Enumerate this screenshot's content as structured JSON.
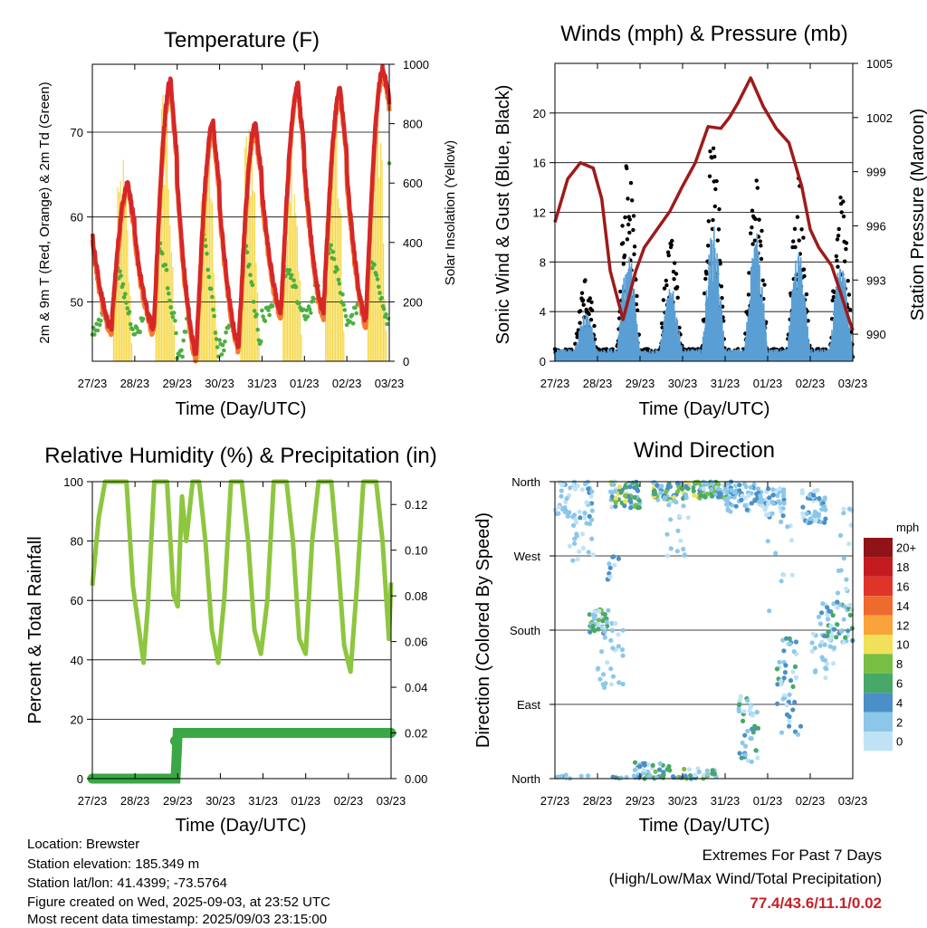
{
  "colors": {
    "temp2m": "#d62728",
    "temp9m": "#f47c30",
    "dewpoint": "#4caf3f",
    "solar": "#f5d84a",
    "wind": "#5a9fd4",
    "gust": "#000000",
    "pressure": "#9e1b1b",
    "rh": "#8dc63f",
    "precip": "#3aa845"
  },
  "x_ticks": [
    "27/23",
    "28/23",
    "29/23",
    "30/23",
    "31/23",
    "01/23",
    "02/23",
    "03/23"
  ],
  "x_axis_title": "Time (Day/UTC)",
  "chart_data": [
    {
      "id": "temperature",
      "type": "line",
      "title": "Temperature (F)",
      "ylabel": "2m & 9m T (Red, Orange) & 2m Td (Green)",
      "y2label": "Solar Insolation (Yellow)",
      "ylim": [
        43,
        78
      ],
      "y2lim": [
        0,
        1000
      ],
      "yticks": [
        50,
        60,
        70
      ],
      "y2ticks": [
        0,
        200,
        400,
        600,
        800,
        1000
      ],
      "x_days": [
        0,
        1,
        2,
        3,
        4,
        5,
        6,
        7
      ],
      "daily_max_temp": [
        64,
        76,
        71,
        71,
        75.5,
        75,
        77.4,
        77.2
      ],
      "daily_min_temp": [
        47,
        47,
        44,
        45,
        49,
        49,
        48,
        67
      ],
      "daily_max_solar": [
        730,
        990,
        880,
        960,
        900,
        980,
        990
      ],
      "daily_dewpoint_peak": [
        54,
        57,
        59,
        57,
        54,
        57,
        55,
        54
      ],
      "series": [
        {
          "name": "2m T"
        },
        {
          "name": "9m T"
        },
        {
          "name": "2m Td"
        },
        {
          "name": "Solar Insolation"
        }
      ]
    },
    {
      "id": "winds",
      "type": "scatter",
      "title": "Winds (mph) & Pressure (mb)",
      "ylabel": "Sonic Wind & Gust (Blue, Black)",
      "y2label": "Station Pressure (Maroon)",
      "ylim": [
        0,
        24
      ],
      "y2lim": [
        988.5,
        1005
      ],
      "yticks": [
        0,
        4,
        8,
        12,
        16,
        20
      ],
      "y2ticks": [
        990,
        993,
        996,
        999,
        1002,
        1005
      ],
      "pressure_x": [
        0,
        0.3,
        0.6,
        0.9,
        1.1,
        1.3,
        1.6,
        1.9,
        2.1,
        2.4,
        2.7,
        3.0,
        3.3,
        3.6,
        3.9,
        4.1,
        4.3,
        4.6,
        4.9,
        5.2,
        5.5,
        5.8,
        6.0,
        6.2,
        6.5,
        6.7,
        6.9,
        7.0
      ],
      "pressure_values": [
        996.2,
        998.6,
        999.5,
        999.2,
        997.5,
        993.5,
        990.8,
        993.5,
        994.8,
        995.8,
        996.8,
        998.2,
        999.5,
        1001.5,
        1001.4,
        1002.0,
        1002.8,
        1004.2,
        1002.6,
        1001.4,
        1000.6,
        998.2,
        995.8,
        994.8,
        993.8,
        992.4,
        990.9,
        990.2
      ],
      "daily_gust_peak": [
        7,
        17,
        10,
        19,
        17.5,
        15,
        14,
        14
      ],
      "daily_wind_peak": [
        4,
        9,
        6,
        11,
        10.5,
        9,
        8,
        8
      ],
      "series": [
        {
          "name": "Sonic Wind"
        },
        {
          "name": "Gust"
        },
        {
          "name": "Station Pressure"
        }
      ]
    },
    {
      "id": "humidity",
      "type": "line",
      "title": "Relative Humidity (%) & Precipitation (in)",
      "ylabel": "Percent & Total Rainfall",
      "ylim": [
        0,
        100
      ],
      "y2lim": [
        0,
        0.13
      ],
      "yticks": [
        0,
        20,
        40,
        60,
        80,
        100
      ],
      "y2ticks": [
        0.0,
        0.02,
        0.04,
        0.06,
        0.08,
        0.1,
        0.12
      ],
      "rh_x": [
        0,
        0.15,
        0.3,
        0.5,
        0.65,
        0.8,
        0.95,
        1.2,
        1.3,
        1.45,
        1.6,
        1.75,
        1.9,
        2.0,
        2.1,
        2.2,
        2.35,
        2.5,
        2.65,
        2.8,
        2.95,
        3.1,
        3.25,
        3.4,
        3.5,
        3.65,
        3.8,
        3.95,
        4.1,
        4.25,
        4.4,
        4.55,
        4.7,
        4.85,
        5.0,
        5.15,
        5.3,
        5.45,
        5.6,
        5.75,
        5.9,
        6.05,
        6.2,
        6.35,
        6.5,
        6.65,
        6.8,
        6.95,
        7.0
      ],
      "rh_values": [
        65,
        88,
        100,
        100,
        100,
        100,
        65,
        39,
        58,
        100,
        100,
        100,
        62,
        58,
        95,
        80,
        100,
        100,
        80,
        50,
        39,
        62,
        100,
        100,
        100,
        80,
        50,
        42,
        60,
        100,
        100,
        100,
        80,
        47,
        42,
        80,
        100,
        100,
        100,
        75,
        45,
        36,
        65,
        100,
        100,
        100,
        80,
        47,
        66
      ],
      "precip_x": [
        0,
        1.95,
        2.0,
        7.0
      ],
      "precip_values": [
        0.0,
        0.0,
        0.02,
        0.02
      ],
      "series": [
        {
          "name": "Relative Humidity"
        },
        {
          "name": "Precipitation"
        }
      ]
    },
    {
      "id": "direction",
      "type": "scatter",
      "title": "Wind Direction",
      "ylabel": "Direction (Colored By Speed)",
      "yticks": [
        "North",
        "East",
        "South",
        "West",
        "North"
      ],
      "ylim": [
        0,
        360
      ],
      "legend_title": "mph",
      "legend_labels": [
        "0",
        "2",
        "4",
        "6",
        "8",
        "10",
        "12",
        "14",
        "16",
        "18",
        "20+"
      ],
      "legend_colors": [
        "#bfe3f5",
        "#8cc7ea",
        "#4a8fc7",
        "#48a868",
        "#77be43",
        "#f0e05a",
        "#f9a33a",
        "#ef6a2e",
        "#e0332a",
        "#c31b20",
        "#901417"
      ],
      "legend_placement": "right"
    }
  ],
  "info": {
    "location": "Location: Brewster",
    "elevation": "Station elevation: 185.349 m",
    "latlon": "Station lat/lon: 41.4399; -73.5764",
    "created": "Figure created on Wed, 2025-09-03, at 23:52 UTC",
    "recent": "Most recent data timestamp: 2025/09/03 23:15:00"
  },
  "extremes": {
    "title": "Extremes For Past 7 Days",
    "subtitle": "(High/Low/Max Wind/Total Precipitation)",
    "values": "77.4/43.6/11.1/0.02"
  }
}
